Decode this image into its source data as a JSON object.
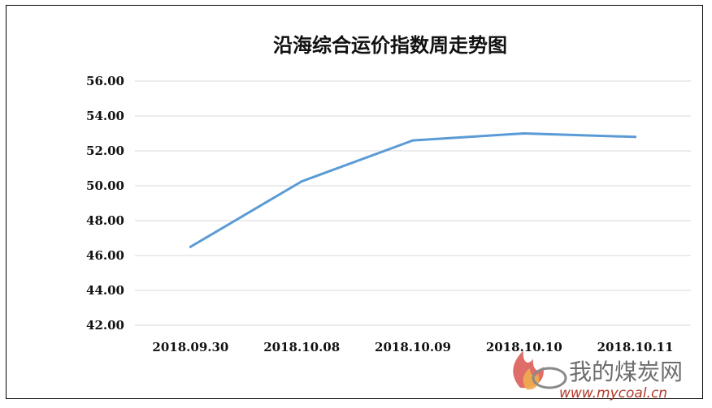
{
  "chart_data": {
    "type": "line",
    "title": "沿海综合运价指数周走势图",
    "xlabel": "",
    "ylabel": "",
    "categories": [
      "2018.09.30",
      "2018.10.08",
      "2018.10.09",
      "2018.10.10",
      "2018.10.11"
    ],
    "series": [
      {
        "values": [
          46.5,
          50.25,
          52.6,
          53.0,
          52.8
        ],
        "color": "#5b9bd5"
      }
    ],
    "ylim": [
      42,
      56
    ],
    "yticks": [
      "56.00",
      "54.00",
      "52.00",
      "50.00",
      "48.00",
      "46.00",
      "44.00",
      "42.00"
    ],
    "grid": true,
    "legend": "none"
  },
  "watermark": {
    "brand": "我的煤炭网",
    "url": "www.mycoal.cn",
    "logo_icon": "flame-logo-icon"
  },
  "colors": {
    "gridline": "#d9d9d9",
    "line": "#5b9bd5",
    "frame": "#000000",
    "watermark_red": "#c0392b"
  }
}
